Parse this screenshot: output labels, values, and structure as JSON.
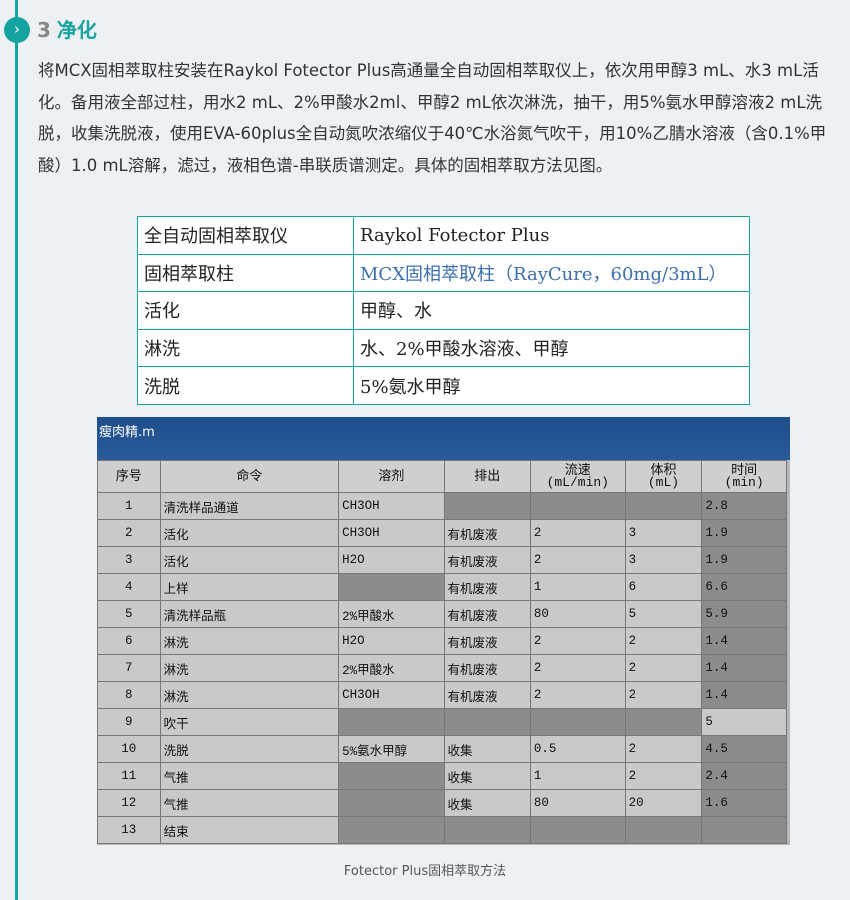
{
  "section": {
    "number": "3",
    "title": "净化",
    "icon": "chevron-right-icon"
  },
  "paragraph": "将MCX固相萃取柱安装在Raykol Fotector Plus高通量全自动固相萃取仪上，依次用甲醇3 mL、水3 mL活化。备用液全部过柱，用水2 mL、2%甲酸水2ml、甲醇2 mL依次淋洗，抽干，用5%氨水甲醇溶液2 mL洗脱，收集洗脱液，使用EVA-60plus全自动氮吹浓缩仪于40℃水浴氮气吹干，用10%乙腈水溶液（含0.1%甲酸）1.0 mL溶解，滤过，液相色谱-串联质谱测定。具体的固相萃取方法见图。",
  "info_table": [
    [
      "全自动固相萃取仪",
      "Raykol Fotector Plus"
    ],
    [
      "固相萃取柱",
      "MCX固相萃取柱（RayCure，60mg/3mL）"
    ],
    [
      "活化",
      "甲醇、水"
    ],
    [
      "淋洗",
      "水、2%甲酸水溶液、甲醇"
    ],
    [
      "洗脱",
      "5%氨水甲醇"
    ]
  ],
  "screenshot": {
    "title": "瘦肉精.m",
    "headers": [
      "序号",
      "命令",
      "溶剂",
      "排出",
      "流速\n(mL/min)",
      "体积\n(mL)",
      "时间\n(min)"
    ],
    "rows": [
      [
        "1",
        "清洗样品通道",
        "CH3OH",
        "",
        "",
        "",
        "2.8"
      ],
      [
        "2",
        "活化",
        "CH3OH",
        "有机废液",
        "2",
        "3",
        "1.9"
      ],
      [
        "3",
        "活化",
        "H2O",
        "有机废液",
        "2",
        "3",
        "1.9"
      ],
      [
        "4",
        "上样",
        "",
        "有机废液",
        "1",
        "6",
        "6.6"
      ],
      [
        "5",
        "清洗样品瓶",
        "2%甲酸水",
        "有机废液",
        "80",
        "5",
        "5.9"
      ],
      [
        "6",
        "淋洗",
        "H2O",
        "有机废液",
        "2",
        "2",
        "1.4"
      ],
      [
        "7",
        "淋洗",
        "2%甲酸水",
        "有机废液",
        "2",
        "2",
        "1.4"
      ],
      [
        "8",
        "淋洗",
        "CH3OH",
        "有机废液",
        "2",
        "2",
        "1.4"
      ],
      [
        "9",
        "吹干",
        "",
        "",
        "",
        "",
        "5"
      ],
      [
        "10",
        "洗脱",
        "5%氨水甲醇",
        "收集",
        "0.5",
        "2",
        "4.5"
      ],
      [
        "11",
        "气推",
        "",
        "收集",
        "1",
        "2",
        "2.4"
      ],
      [
        "12",
        "气推",
        "",
        "收集",
        "80",
        "20",
        "1.6"
      ],
      [
        "13",
        "结束",
        "",
        "",
        "",
        "",
        ""
      ]
    ]
  },
  "caption": "Fotector Plus固相萃取方法",
  "colors": {
    "accent": "#14a3a0",
    "title_bar": "#1f4e8c"
  }
}
